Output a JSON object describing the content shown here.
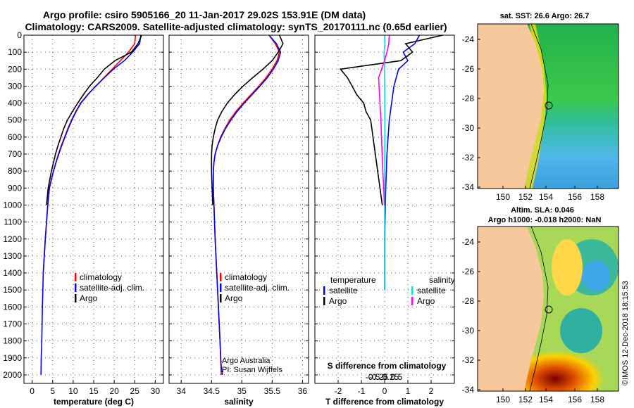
{
  "title": {
    "line1": "Argo profile: csiro 5905166_20 11-Jan-2017 29.02S 153.91E (DM data)",
    "line2": "Climatology: CARS2009. Satellite-adjusted climatology: synTS_20170111.nc (0.65d earlier)"
  },
  "colors": {
    "climatology": "#ff0000",
    "satellite": "#0000ff",
    "argo": "#000000",
    "sal_satellite": "#00e5e5",
    "sal_argo": "#ff00ff"
  },
  "chart_data": [
    {
      "type": "line",
      "id": "temperature",
      "xlabel": "temperature (deg C)",
      "ylabel": "",
      "xlim": [
        -2,
        32
      ],
      "ylim": [
        2050,
        0
      ],
      "xticks": [
        "0",
        "5",
        "10",
        "15",
        "20",
        "25",
        "30"
      ],
      "xtick_values": [
        0,
        5,
        10,
        15,
        20,
        25,
        30
      ],
      "yticks": [
        "0",
        "100",
        "200",
        "300",
        "400",
        "500",
        "600",
        "700",
        "800",
        "900",
        "1000",
        "1100",
        "1200",
        "1300",
        "1400",
        "1500",
        "1600",
        "1700",
        "1800",
        "1900",
        "2000"
      ],
      "ytick_values": [
        0,
        100,
        200,
        300,
        400,
        500,
        600,
        700,
        800,
        900,
        1000,
        1100,
        1200,
        1300,
        1400,
        1500,
        1600,
        1700,
        1800,
        1900,
        2000
      ],
      "grid": true,
      "legend": [
        "climatology",
        "satellite-adj. clim.",
        "Argo"
      ],
      "series": [
        {
          "name": "climatology",
          "color": "#ff0000",
          "x": [
            25.2,
            25,
            23.5,
            21.5,
            19.5,
            17.5,
            15.5,
            13.5,
            11.8,
            10.6,
            9.6,
            8.7,
            7.9,
            7.1,
            6.4,
            5.8,
            5.2,
            4.7,
            4.2,
            3.8,
            3.2,
            2.7
          ],
          "y": [
            0,
            50,
            100,
            150,
            200,
            250,
            300,
            350,
            400,
            450,
            500,
            550,
            600,
            650,
            700,
            750,
            800,
            850,
            900,
            1000,
            1200,
            1400
          ]
        },
        {
          "name": "satellite-adj. clim.",
          "color": "#0000ff",
          "x": [
            26.5,
            26.2,
            24.5,
            22.5,
            19.8,
            17.6,
            15.5,
            13.6,
            11.9,
            10.7,
            9.7,
            8.8,
            8.0,
            7.2,
            6.5,
            5.8,
            5.2,
            4.7,
            4.2,
            3.8,
            3.2,
            2.7,
            2.5,
            2.35,
            2.2,
            2.15
          ],
          "y": [
            0,
            50,
            100,
            150,
            200,
            250,
            300,
            350,
            400,
            450,
            500,
            550,
            600,
            650,
            700,
            750,
            800,
            850,
            900,
            1000,
            1200,
            1400,
            1600,
            1800,
            1900,
            2000
          ]
        },
        {
          "name": "Argo",
          "color": "#000000",
          "x": [
            26.7,
            25.8,
            24.2,
            20.2,
            17.6,
            15.9,
            14.0,
            12.5,
            11.1,
            9.8,
            8.6,
            7.7,
            7.0,
            6.3,
            5.7,
            5.2,
            4.7,
            4.3,
            3.9,
            3.5
          ],
          "y": [
            0,
            50,
            100,
            150,
            200,
            250,
            300,
            350,
            400,
            450,
            500,
            550,
            600,
            650,
            700,
            750,
            800,
            850,
            900,
            1000
          ]
        }
      ]
    },
    {
      "type": "line",
      "id": "salinity",
      "xlabel": "salinity",
      "xlim": [
        33.8,
        36.1
      ],
      "ylim": [
        2050,
        0
      ],
      "xticks": [
        "34",
        "34.5",
        "35",
        "35.5",
        "36"
      ],
      "xtick_values": [
        34,
        34.5,
        35,
        35.5,
        36
      ],
      "grid": true,
      "legend": [
        "climatology",
        "satellite-adj. clim.",
        "Argo"
      ],
      "credit": [
        "Argo Australia",
        "PI: Susan Wijffels"
      ],
      "series": [
        {
          "name": "climatology",
          "color": "#ff0000",
          "x": [
            35.45,
            35.55,
            35.62,
            35.58,
            35.5,
            35.4,
            35.28,
            35.15,
            35.02,
            34.9,
            34.8,
            34.72,
            34.65,
            34.6,
            34.56,
            34.54,
            34.53,
            34.53,
            34.53,
            34.54,
            34.56,
            34.6,
            34.64,
            34.66
          ],
          "y": [
            0,
            50,
            100,
            150,
            200,
            250,
            300,
            350,
            400,
            450,
            500,
            550,
            600,
            650,
            700,
            750,
            800,
            850,
            900,
            1000,
            1200,
            1500,
            1800,
            2000
          ]
        },
        {
          "name": "satellite-adj. clim.",
          "color": "#0000ff",
          "x": [
            35.45,
            35.57,
            35.64,
            35.6,
            35.52,
            35.42,
            35.3,
            35.17,
            35.04,
            34.92,
            34.82,
            34.73,
            34.66,
            34.6,
            34.56,
            34.54,
            34.53,
            34.53,
            34.53,
            34.54,
            34.56,
            34.6,
            34.64,
            34.66,
            34.68
          ],
          "y": [
            0,
            50,
            100,
            150,
            200,
            250,
            300,
            350,
            400,
            450,
            500,
            550,
            600,
            650,
            700,
            750,
            800,
            850,
            900,
            1000,
            1200,
            1500,
            1800,
            1950,
            2000
          ]
        },
        {
          "name": "Argo",
          "color": "#000000",
          "x": [
            35.62,
            35.68,
            35.6,
            35.5,
            35.35,
            35.18,
            35.02,
            34.88,
            34.76,
            34.67,
            34.6,
            34.56,
            34.53,
            34.51,
            34.5,
            34.5,
            34.5,
            34.51,
            34.52
          ],
          "y": [
            0,
            50,
            100,
            150,
            200,
            250,
            300,
            350,
            400,
            450,
            500,
            550,
            600,
            650,
            700,
            750,
            800,
            900,
            1000
          ]
        }
      ]
    },
    {
      "type": "line",
      "id": "difference",
      "xlabel": "T difference from climatology",
      "xlabel_top": "S difference from climatology",
      "xlim": [
        -3,
        3
      ],
      "ylim": [
        2050,
        0
      ],
      "xticks": [
        "-2",
        "-1",
        "0",
        "1",
        "2"
      ],
      "xtick_values": [
        -2,
        -1,
        0,
        1,
        2
      ],
      "sticks": [
        "-0.5",
        "-0.25",
        "0",
        "0.25",
        "0.5"
      ],
      "stick_values": [
        -0.5,
        -0.25,
        0,
        0.25,
        0.5
      ],
      "grid": true,
      "legend_temperature": {
        "heading": "temperature",
        "items": [
          "satellite",
          "Argo"
        ]
      },
      "legend_salinity": {
        "heading": "salinity",
        "items": [
          "satellite",
          "Argo"
        ]
      },
      "series": [
        {
          "name": "satellite",
          "group": "temperature",
          "color": "#0000ff",
          "x": [
            1.5,
            1.3,
            0.8,
            1.0,
            0.6,
            0.4,
            0.3,
            0.2,
            0.1,
            0.05,
            0,
            0
          ],
          "y": [
            0,
            50,
            100,
            150,
            200,
            300,
            400,
            500,
            700,
            900,
            1200,
            1500
          ]
        },
        {
          "name": "Argo",
          "group": "temperature",
          "color": "#000000",
          "x": [
            2.5,
            0.9,
            1.2,
            0.7,
            -1.9,
            -1.6,
            -1.4,
            -1.2,
            -0.9,
            -0.8,
            -0.6,
            -0.5,
            -0.4,
            -0.3,
            -0.2,
            -0.1
          ],
          "y": [
            0,
            50,
            100,
            150,
            200,
            250,
            300,
            350,
            400,
            450,
            500,
            600,
            700,
            800,
            900,
            1000
          ]
        },
        {
          "name": "satellite",
          "group": "salinity",
          "color": "#00e5e5",
          "x": [
            0.0,
            0.01,
            -0.02,
            -0.01,
            0.0,
            0.01,
            0.0,
            0.0,
            0.0,
            0.0
          ],
          "y": [
            0,
            50,
            100,
            200,
            300,
            500,
            800,
            1100,
            1400,
            1500
          ]
        },
        {
          "name": "Argo",
          "group": "salinity",
          "color": "#ff00ff",
          "x": [
            0.2,
            0.18,
            0.1,
            0.0,
            -0.26,
            -0.22,
            -0.16,
            -0.12,
            -0.08,
            -0.04,
            -0.01
          ],
          "y": [
            0,
            50,
            100,
            150,
            250,
            350,
            500,
            650,
            800,
            900,
            1000
          ]
        }
      ]
    }
  ],
  "maps": [
    {
      "id": "sst",
      "title": "sat. SST: 26.6 Argo: 26.7",
      "xticks": [
        "150",
        "152",
        "154",
        "156",
        "158"
      ],
      "yticks": [
        "-24",
        "-26",
        "-28",
        "-30",
        "-32",
        "-34"
      ]
    },
    {
      "id": "sla",
      "title_line1": "Altim. SLA: 0.046",
      "title_line2": "Argo h1000: -0.018 h2000: NaN",
      "xticks": [
        "150",
        "152",
        "154",
        "156",
        "158"
      ],
      "yticks": [
        "-24",
        "-26",
        "-28",
        "-30",
        "-32",
        "-34"
      ]
    }
  ],
  "footer": "©IMOS 12-Dec-2018 18:15:53"
}
